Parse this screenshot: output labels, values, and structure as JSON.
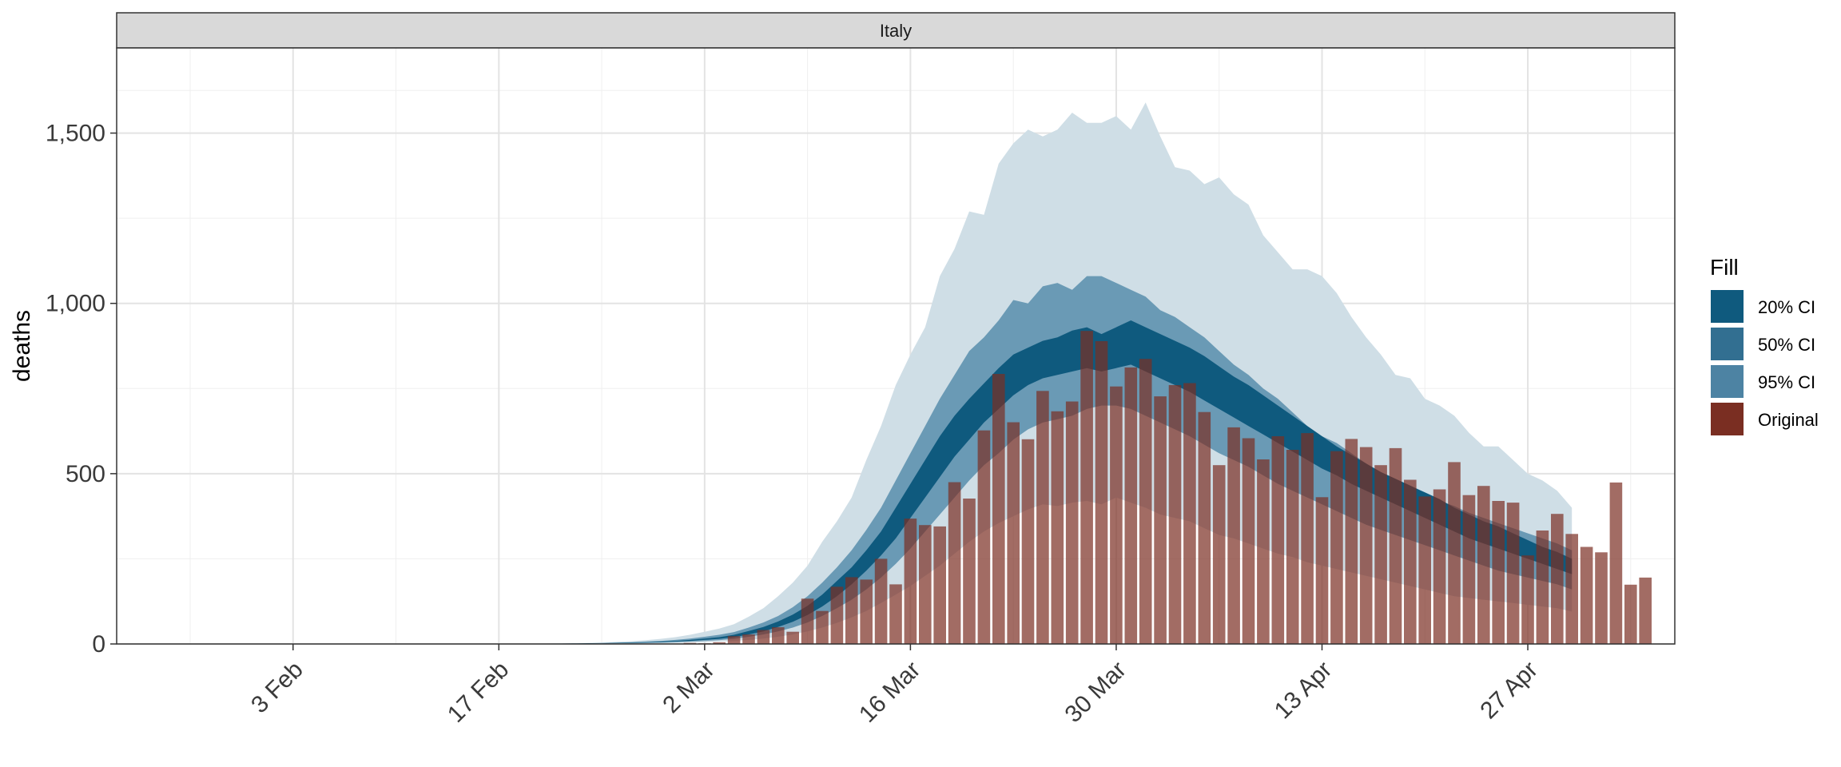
{
  "chart_data": {
    "type": "bar",
    "panel_title": "Italy",
    "xlabel": "",
    "ylabel": "deaths",
    "ylim": [
      0,
      1750
    ],
    "yticks": [
      0,
      500,
      1000,
      1500
    ],
    "ytick_labels": [
      "0",
      "500",
      "1,000",
      "1,500"
    ],
    "x_start_date": "2020-01-22",
    "x_end_date": "2020-05-07",
    "xticks": [
      "2020-02-03",
      "2020-02-17",
      "2020-03-02",
      "2020-03-16",
      "2020-03-30",
      "2020-04-13",
      "2020-04-27"
    ],
    "xtick_labels": [
      "3 Feb",
      "17 Feb",
      "2 Mar",
      "16 Mar",
      "30 Mar",
      "13 Apr",
      "27 Apr"
    ],
    "grid": true,
    "legend": {
      "title": "Fill",
      "position": "right",
      "entries": [
        {
          "label": "20% CI",
          "color": "#0f5a7e"
        },
        {
          "label": "50% CI",
          "color": "#326f91"
        },
        {
          "label": "95% CI",
          "color": "#4d83a3"
        },
        {
          "label": "Original",
          "color": "#7a2e22"
        }
      ]
    },
    "bars": {
      "name": "Original",
      "start_date": "2020-03-01",
      "values": [
        3,
        2,
        5,
        23,
        28,
        41,
        49,
        36,
        133,
        97,
        168,
        196,
        189,
        250,
        175,
        368,
        349,
        345,
        475,
        427,
        627,
        793,
        651,
        601,
        743,
        683,
        712,
        919,
        889,
        756,
        812,
        837,
        727,
        760,
        766,
        681,
        525,
        636,
        604,
        542,
        610,
        570,
        619,
        431,
        566,
        602,
        578,
        525,
        575,
        482,
        433,
        454,
        534,
        437,
        464,
        420,
        415,
        260,
        333,
        382,
        323,
        285,
        269,
        474,
        174,
        195
      ]
    },
    "bands": {
      "start_date": "2020-02-15",
      "ci95_upper": [
        0,
        0,
        0,
        1,
        1,
        1,
        2,
        2,
        3,
        4,
        6,
        8,
        11,
        15,
        20,
        27,
        36,
        45,
        58,
        80,
        105,
        140,
        180,
        230,
        300,
        360,
        430,
        540,
        640,
        760,
        850,
        930,
        1080,
        1160,
        1270,
        1260,
        1410,
        1470,
        1510,
        1490,
        1510,
        1560,
        1530,
        1530,
        1550,
        1510,
        1590,
        1490,
        1400,
        1390,
        1350,
        1370,
        1320,
        1290,
        1200,
        1150,
        1100,
        1100,
        1080,
        1030,
        960,
        900,
        850,
        790,
        780,
        720,
        700,
        670,
        620,
        580,
        580,
        540,
        500,
        480,
        450,
        400
      ],
      "ci50_upper": [
        0,
        0,
        0,
        0,
        1,
        1,
        1,
        2,
        2,
        3,
        4,
        5,
        7,
        9,
        12,
        16,
        21,
        27,
        35,
        48,
        63,
        82,
        108,
        140,
        180,
        225,
        275,
        335,
        400,
        480,
        560,
        640,
        720,
        790,
        860,
        900,
        950,
        1010,
        1000,
        1050,
        1060,
        1040,
        1080,
        1080,
        1060,
        1040,
        1020,
        980,
        960,
        930,
        900,
        860,
        820,
        790,
        750,
        720,
        680,
        640,
        610,
        590,
        560,
        530,
        500,
        480,
        460,
        440,
        420,
        405,
        385,
        370,
        355,
        340,
        325,
        310,
        295,
        275
      ],
      "ci20_upper": [
        0,
        0,
        0,
        0,
        0,
        1,
        1,
        1,
        2,
        2,
        3,
        4,
        5,
        7,
        9,
        12,
        16,
        20,
        27,
        38,
        50,
        66,
        86,
        112,
        145,
        185,
        225,
        275,
        330,
        400,
        470,
        540,
        610,
        670,
        720,
        765,
        810,
        850,
        870,
        890,
        900,
        920,
        930,
        910,
        930,
        950,
        930,
        910,
        890,
        870,
        845,
        815,
        785,
        760,
        730,
        700,
        670,
        640,
        610,
        580,
        555,
        530,
        505,
        485,
        465,
        445,
        425,
        400,
        380,
        360,
        345,
        325,
        305,
        285,
        270,
        250
      ],
      "ci20_lower": [
        0,
        0,
        0,
        0,
        0,
        0,
        1,
        1,
        1,
        2,
        2,
        3,
        4,
        5,
        7,
        9,
        12,
        15,
        20,
        28,
        37,
        50,
        65,
        85,
        110,
        140,
        175,
        215,
        260,
        310,
        370,
        430,
        490,
        550,
        600,
        650,
        690,
        730,
        760,
        780,
        790,
        800,
        810,
        800,
        810,
        820,
        800,
        780,
        760,
        740,
        715,
        690,
        665,
        640,
        615,
        590,
        565,
        540,
        515,
        495,
        470,
        450,
        430,
        410,
        390,
        370,
        350,
        330,
        310,
        295,
        280,
        265,
        250,
        235,
        220,
        205
      ],
      "ci50_lower": [
        0,
        0,
        0,
        0,
        0,
        0,
        0,
        1,
        1,
        1,
        2,
        2,
        3,
        4,
        5,
        7,
        9,
        11,
        15,
        21,
        28,
        37,
        48,
        63,
        82,
        105,
        130,
        160,
        195,
        235,
        280,
        330,
        380,
        430,
        480,
        525,
        560,
        600,
        630,
        650,
        660,
        670,
        690,
        700,
        700,
        690,
        670,
        650,
        630,
        610,
        585,
        560,
        540,
        520,
        495,
        470,
        450,
        430,
        410,
        390,
        370,
        350,
        335,
        320,
        305,
        290,
        275,
        260,
        245,
        230,
        215,
        205,
        195,
        185,
        175,
        160
      ],
      "ci95_lower": [
        0,
        0,
        0,
        0,
        0,
        0,
        0,
        0,
        0,
        1,
        1,
        1,
        2,
        2,
        3,
        4,
        5,
        7,
        9,
        12,
        16,
        21,
        28,
        37,
        48,
        62,
        78,
        97,
        120,
        145,
        170,
        200,
        230,
        265,
        300,
        330,
        355,
        375,
        395,
        410,
        405,
        415,
        420,
        410,
        430,
        415,
        400,
        380,
        370,
        360,
        340,
        320,
        310,
        295,
        280,
        265,
        255,
        240,
        230,
        220,
        210,
        200,
        190,
        180,
        170,
        160,
        150,
        140,
        135,
        130,
        125,
        120,
        115,
        110,
        105,
        95
      ]
    }
  }
}
